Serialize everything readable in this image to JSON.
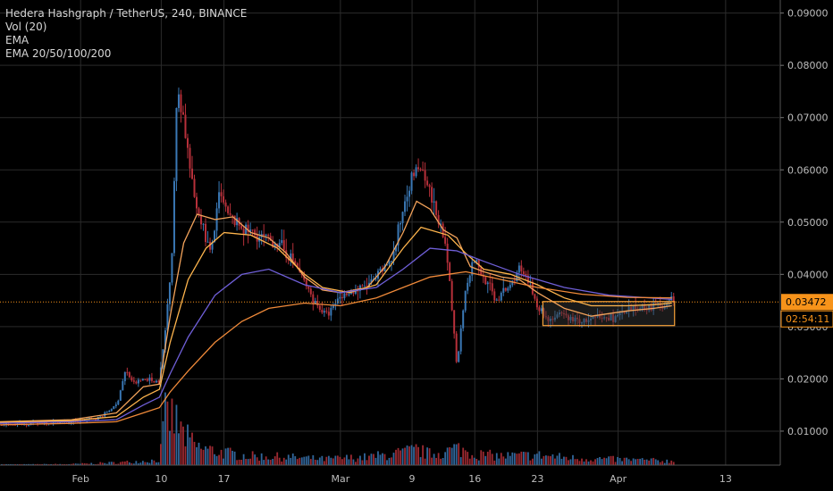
{
  "legend": {
    "symbol": "Hedera Hashgraph / TetherUS, 240, BINANCE",
    "volume": "Vol (20)",
    "ema": "EMA",
    "ema_set": "EMA 20/50/100/200"
  },
  "colors": {
    "background": "#000000",
    "grid": "#2b2b2b",
    "axis_text": "#bdbdbd",
    "up": "#3a78b5",
    "down": "#b7303a",
    "ema20": "#f3a35b",
    "ema50": "#ffb54d",
    "ema100": "#6f5fd8",
    "ema200": "#f08a3a",
    "price_line": "#f7931a",
    "rect_border": "#f7a23a",
    "rect_fill": "#3a3a3a"
  },
  "price_label": "0.03472",
  "countdown_label": "02:54:11",
  "chart_data": {
    "type": "candlestick",
    "x_ticks": [
      {
        "label": "Feb",
        "day": 1
      },
      {
        "label": "10",
        "day": 10
      },
      {
        "label": "17",
        "day": 17
      },
      {
        "label": "Mar",
        "day": 30
      },
      {
        "label": "9",
        "day": 38
      },
      {
        "label": "16",
        "day": 45
      },
      {
        "label": "23",
        "day": 52
      },
      {
        "label": "Apr",
        "day": 61
      },
      {
        "label": "13",
        "day": 73
      }
    ],
    "y_ticks": [
      "0.01000",
      "0.02000",
      "0.03000",
      "0.04000",
      "0.05000",
      "0.06000",
      "0.07000",
      "0.08000",
      "0.09000"
    ],
    "x_range": [
      -8,
      79
    ],
    "y_range": [
      0.0035,
      0.0925
    ],
    "current_price": 0.03472,
    "series": [
      {
        "name": "EMA 20",
        "points": [
          [
            -8,
            0.0118
          ],
          [
            0,
            0.0122
          ],
          [
            5,
            0.0135
          ],
          [
            8,
            0.0185
          ],
          [
            9.8,
            0.019
          ],
          [
            11,
            0.032
          ],
          [
            12.5,
            0.046
          ],
          [
            14,
            0.0515
          ],
          [
            16,
            0.0505
          ],
          [
            18,
            0.051
          ],
          [
            20,
            0.048
          ],
          [
            22,
            0.047
          ],
          [
            24,
            0.044
          ],
          [
            26,
            0.0395
          ],
          [
            28,
            0.037
          ],
          [
            30,
            0.0365
          ],
          [
            33,
            0.0375
          ],
          [
            35,
            0.0415
          ],
          [
            37,
            0.048
          ],
          [
            38.5,
            0.054
          ],
          [
            40,
            0.0525
          ],
          [
            41.5,
            0.0485
          ],
          [
            43,
            0.047
          ],
          [
            44.5,
            0.0415
          ],
          [
            46,
            0.0405
          ],
          [
            48,
            0.0395
          ],
          [
            50,
            0.039
          ],
          [
            52,
            0.0365
          ],
          [
            55,
            0.0335
          ],
          [
            58,
            0.032
          ],
          [
            62,
            0.033
          ],
          [
            65,
            0.0335
          ],
          [
            67,
            0.034
          ]
        ]
      },
      {
        "name": "EMA 50",
        "points": [
          [
            -8,
            0.0117
          ],
          [
            0,
            0.012
          ],
          [
            5,
            0.0128
          ],
          [
            8,
            0.0165
          ],
          [
            9.8,
            0.018
          ],
          [
            11,
            0.027
          ],
          [
            13,
            0.039
          ],
          [
            15,
            0.045
          ],
          [
            17,
            0.048
          ],
          [
            20,
            0.0475
          ],
          [
            23,
            0.045
          ],
          [
            26,
            0.04
          ],
          [
            28,
            0.0375
          ],
          [
            31,
            0.0365
          ],
          [
            34,
            0.038
          ],
          [
            37,
            0.045
          ],
          [
            39,
            0.049
          ],
          [
            42,
            0.0475
          ],
          [
            44,
            0.044
          ],
          [
            46,
            0.041
          ],
          [
            49,
            0.04
          ],
          [
            52,
            0.038
          ],
          [
            55,
            0.0355
          ],
          [
            58,
            0.034
          ],
          [
            62,
            0.034
          ],
          [
            65,
            0.0342
          ],
          [
            67,
            0.0345
          ]
        ]
      },
      {
        "name": "EMA 100",
        "points": [
          [
            -8,
            0.0115
          ],
          [
            0,
            0.0118
          ],
          [
            5,
            0.0122
          ],
          [
            8,
            0.015
          ],
          [
            9.8,
            0.0165
          ],
          [
            11,
            0.021
          ],
          [
            13,
            0.028
          ],
          [
            16,
            0.036
          ],
          [
            19,
            0.04
          ],
          [
            22,
            0.041
          ],
          [
            26,
            0.038
          ],
          [
            30,
            0.0365
          ],
          [
            34,
            0.0375
          ],
          [
            37,
            0.041
          ],
          [
            40,
            0.045
          ],
          [
            43,
            0.0445
          ],
          [
            46,
            0.0425
          ],
          [
            50,
            0.04
          ],
          [
            55,
            0.0375
          ],
          [
            60,
            0.036
          ],
          [
            67,
            0.0352
          ]
        ]
      },
      {
        "name": "EMA 200",
        "points": [
          [
            -8,
            0.0112
          ],
          [
            0,
            0.0115
          ],
          [
            5,
            0.0118
          ],
          [
            8,
            0.0135
          ],
          [
            9.8,
            0.0145
          ],
          [
            11,
            0.0175
          ],
          [
            13,
            0.0215
          ],
          [
            16,
            0.027
          ],
          [
            19,
            0.031
          ],
          [
            22,
            0.0335
          ],
          [
            26,
            0.0345
          ],
          [
            30,
            0.034
          ],
          [
            34,
            0.0355
          ],
          [
            37,
            0.0375
          ],
          [
            40,
            0.0395
          ],
          [
            44,
            0.0405
          ],
          [
            48,
            0.039
          ],
          [
            52,
            0.0375
          ],
          [
            57,
            0.0362
          ],
          [
            62,
            0.0356
          ],
          [
            67,
            0.0355
          ]
        ]
      }
    ],
    "candle_path": [
      [
        -8,
        0.0112
      ],
      [
        0,
        0.0118
      ],
      [
        3,
        0.0125
      ],
      [
        5,
        0.015
      ],
      [
        6,
        0.0215
      ],
      [
        7,
        0.019
      ],
      [
        8,
        0.02
      ],
      [
        9.8,
        0.0195
      ],
      [
        10.5,
        0.03
      ],
      [
        11.2,
        0.045
      ],
      [
        11.8,
        0.076
      ],
      [
        12.5,
        0.07
      ],
      [
        13.5,
        0.056
      ],
      [
        14.5,
        0.05
      ],
      [
        15.5,
        0.044
      ],
      [
        16.5,
        0.055
      ],
      [
        17.5,
        0.051
      ],
      [
        19,
        0.049
      ],
      [
        21,
        0.047
      ],
      [
        23,
        0.046
      ],
      [
        25,
        0.042
      ],
      [
        27,
        0.035
      ],
      [
        28.5,
        0.032
      ],
      [
        30,
        0.036
      ],
      [
        32,
        0.037
      ],
      [
        34,
        0.039
      ],
      [
        36,
        0.044
      ],
      [
        37.5,
        0.057
      ],
      [
        38.8,
        0.061
      ],
      [
        39.8,
        0.056
      ],
      [
        41,
        0.05
      ],
      [
        42,
        0.042
      ],
      [
        43,
        0.0225
      ],
      [
        44,
        0.038
      ],
      [
        45,
        0.043
      ],
      [
        46,
        0.039
      ],
      [
        47.5,
        0.035
      ],
      [
        49,
        0.038
      ],
      [
        50,
        0.041
      ],
      [
        51,
        0.0385
      ],
      [
        52,
        0.034
      ],
      [
        53,
        0.0315
      ],
      [
        55,
        0.032
      ],
      [
        57,
        0.031
      ],
      [
        59,
        0.0315
      ],
      [
        61,
        0.032
      ],
      [
        63,
        0.0335
      ],
      [
        65,
        0.034
      ],
      [
        67,
        0.0348
      ]
    ],
    "volume_profile": [
      [
        -8,
        0.01
      ],
      [
        0,
        0.02
      ],
      [
        5,
        0.05
      ],
      [
        8,
        0.08
      ],
      [
        9.8,
        0.1
      ],
      [
        10.5,
        1.0
      ],
      [
        11.5,
        0.9
      ],
      [
        12.5,
        0.6
      ],
      [
        14,
        0.35
      ],
      [
        16,
        0.28
      ],
      [
        18,
        0.22
      ],
      [
        20,
        0.18
      ],
      [
        24,
        0.16
      ],
      [
        28,
        0.12
      ],
      [
        33,
        0.16
      ],
      [
        36,
        0.22
      ],
      [
        38.5,
        0.3
      ],
      [
        40,
        0.22
      ],
      [
        42,
        0.28
      ],
      [
        43,
        0.34
      ],
      [
        45,
        0.22
      ],
      [
        48,
        0.18
      ],
      [
        52,
        0.2
      ],
      [
        56,
        0.14
      ],
      [
        60,
        0.12
      ],
      [
        64,
        0.1
      ],
      [
        67,
        0.08
      ]
    ],
    "consolidation_box": {
      "x0": 52.6,
      "x1": 67.3,
      "y0": 0.0302,
      "y1": 0.0348
    }
  }
}
